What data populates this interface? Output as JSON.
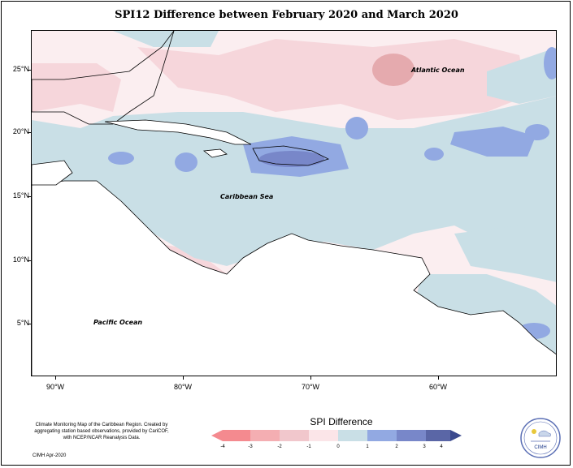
{
  "title": "SPI12 Difference between February 2020 and March 2020",
  "y_axis_labels": [
    "25°N",
    "20°N",
    "15°N",
    "10°N",
    "5°N"
  ],
  "x_axis_labels": [
    "90°W",
    "80°W",
    "70°W",
    "60°W"
  ],
  "map_labels": {
    "atlantic": "Atlantic Ocean",
    "caribbean": "Caribbean Sea",
    "pacific": "Pacific Ocean"
  },
  "credit_text": "Climate Monitoring Map of the Caribbean Region. Created by aggregating station based observations, provided by CariCOF, with NCEP/NCAR Reanalysis Data.",
  "credit_date": "CIMH Apr-2020",
  "legend": {
    "title": "SPI Difference",
    "labels": [
      "-4",
      "-3",
      "-2",
      "-1",
      "0",
      "1",
      "2",
      "3",
      "4"
    ],
    "colors": [
      "#f48a8f",
      "#f4aeb2",
      "#f1c7cc",
      "#fbe5e8",
      "#c9dfe6",
      "#92a9e2",
      "#7887c9",
      "#5a66a6"
    ]
  },
  "logo_text": "CIMH",
  "colors": {
    "light_pink": "#fbeef0",
    "pink": "#f6d6db",
    "dark_pink": "#e5aaae",
    "light_blue": "#c9dfe6",
    "blue": "#92a9e2",
    "dark_blue": "#7887c9"
  }
}
